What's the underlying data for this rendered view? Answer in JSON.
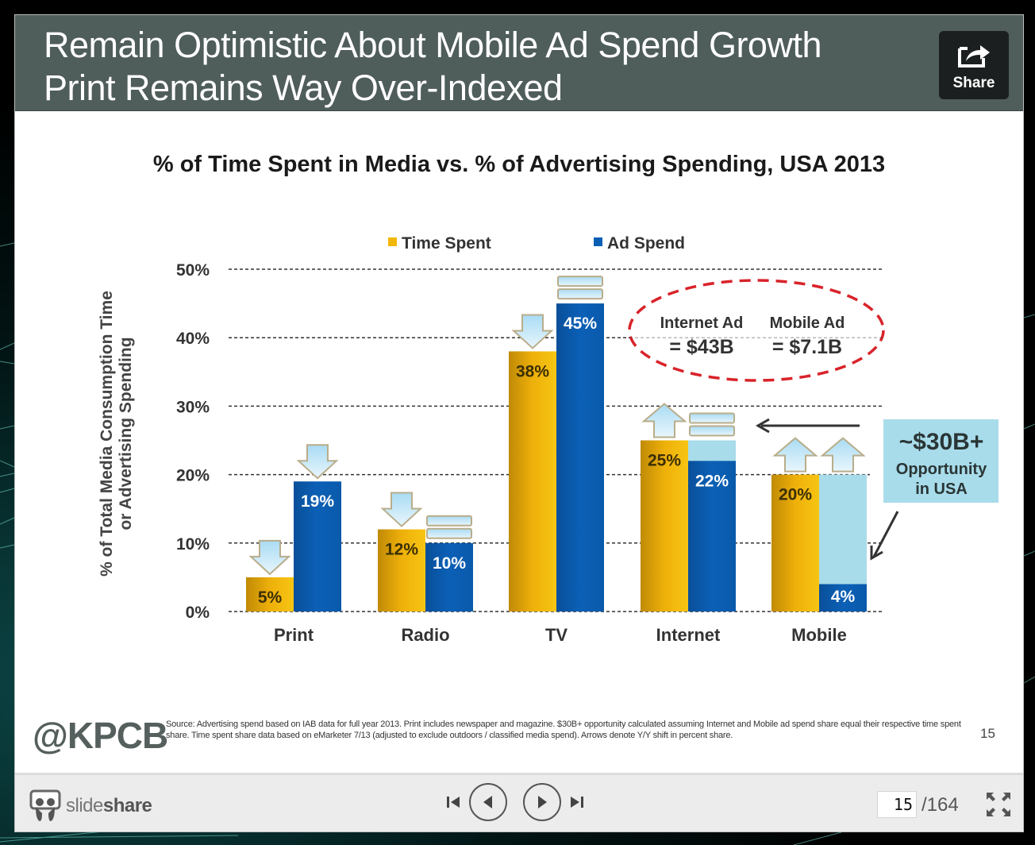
{
  "slide": {
    "title_line1": "Remain Optimistic About Mobile Ad Spend Growth",
    "title_line2": "Print Remains Way Over-Indexed",
    "share_label": "Share",
    "brand": "@KPCB",
    "source_note": "Source: Advertising spend based on IAB data for full year 2013. Print includes newspaper and magazine. $30B+ opportunity calculated assuming Internet and Mobile ad spend share equal their respective time spent share. Time spent share data based on eMarketer 7/13 (adjusted to exclude outdoors / classified media spend). Arrows denote Y/Y shift in percent share.",
    "slide_number": "15"
  },
  "chart_data": {
    "type": "bar",
    "title": "% of Time Spent in Media vs. % of Advertising Spending, USA 2013",
    "xlabel": "",
    "ylabel": "% of Total Media Consumption Time or Advertising Spending",
    "ylabel_line1": "% of Total Media Consumption Time",
    "ylabel_line2": "or Advertising Spending",
    "ylim": [
      0,
      50
    ],
    "yticks": [
      0,
      10,
      20,
      30,
      40,
      50
    ],
    "ytick_labels": [
      "0%",
      "10%",
      "20%",
      "30%",
      "40%",
      "50%"
    ],
    "grid": true,
    "legend": "top",
    "categories": [
      "Print",
      "Radio",
      "TV",
      "Internet",
      "Mobile"
    ],
    "series": [
      {
        "name": "Time Spent",
        "color": "#f2b705",
        "values": [
          5,
          12,
          38,
          25,
          20
        ],
        "labels": [
          "5%",
          "12%",
          "38%",
          "25%",
          "20%"
        ],
        "yoy_shift": [
          "down",
          "down",
          "down",
          "up",
          "up"
        ]
      },
      {
        "name": "Ad Spend",
        "color": "#0a5fb4",
        "values": [
          19,
          10,
          45,
          22,
          4
        ],
        "labels": [
          "19%",
          "10%",
          "45%",
          "22%",
          "4%"
        ],
        "yoy_shift": [
          "down",
          "flat",
          "flat",
          "flat",
          "up"
        ]
      }
    ],
    "opportunity_fill": {
      "color": "#a8dcea",
      "categories": [
        "Internet",
        "Mobile"
      ],
      "target_values": [
        25,
        20
      ]
    },
    "annotations": {
      "oval": [
        {
          "line1": "Internet Ad",
          "line2": "= $43B"
        },
        {
          "line1": "Mobile Ad",
          "line2": "= $7.1B"
        }
      ],
      "callout_line1": "~$30B+",
      "callout_line2": "Opportunity",
      "callout_line3": "in USA"
    },
    "colors": {
      "oval_dash": "#d9232a",
      "arrow_fill": "#c9e8f7",
      "arrow_stroke": "#b9ad8a",
      "callout_bg": "#a8dcea"
    }
  },
  "viewer": {
    "brand_light": "slide",
    "brand_bold": "share",
    "current_page": "15",
    "total_pages": "/164",
    "buttons": {
      "first": "first-slide",
      "prev": "previous-slide",
      "next": "next-slide",
      "last": "last-slide",
      "fullscreen": "fullscreen"
    }
  }
}
